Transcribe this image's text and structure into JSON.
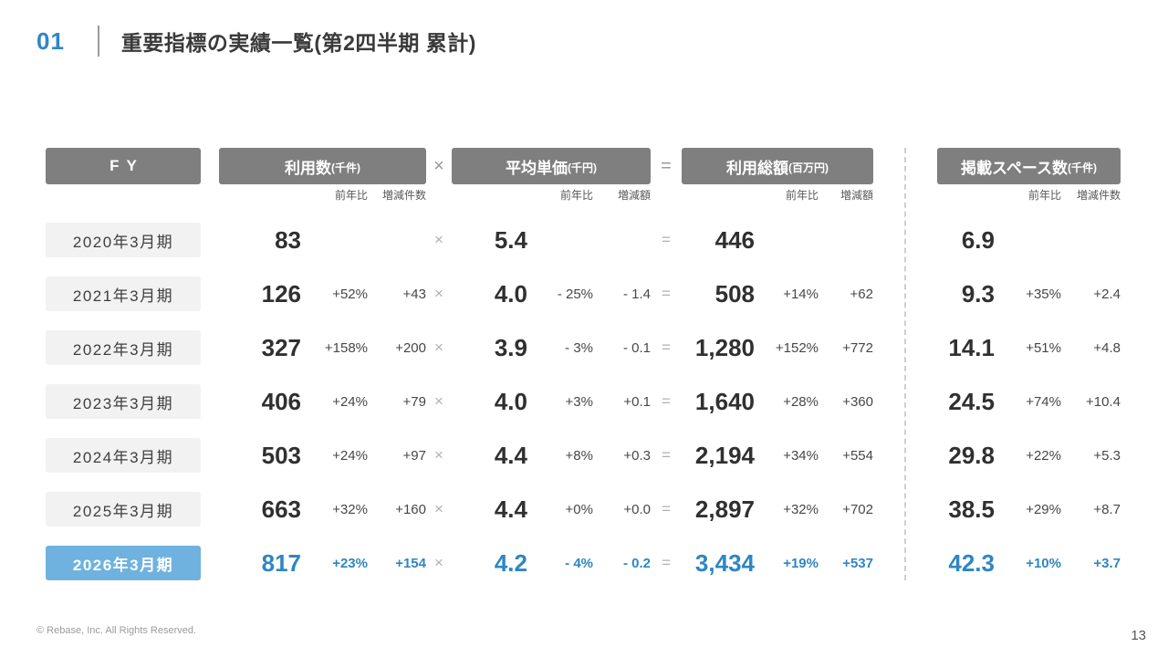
{
  "page": {
    "number_label": "01",
    "title": "重要指標の実績一覧(第2四半期 累計)",
    "footer_copyright": "© Rebase, Inc. All Rights Reserved.",
    "page_number": "13"
  },
  "colors": {
    "accent_blue": "#2E86C4",
    "highlight_row_bg": "#6FB2DF",
    "header_box_bg": "#7F7F7F"
  },
  "table": {
    "fy_header": "FY",
    "operators": {
      "multiply": "×",
      "equals": "="
    },
    "groups": [
      {
        "title": "利用数",
        "unit": "(千件)",
        "sub": [
          "前年比",
          "増減件数"
        ]
      },
      {
        "title": "平均単価",
        "unit": "(千円)",
        "sub": [
          "前年比",
          "増減額"
        ]
      },
      {
        "title": "利用総額",
        "unit": "(百万円)",
        "sub": [
          "前年比",
          "増減額"
        ]
      },
      {
        "title": "掲載スペース数",
        "unit": "(千件)",
        "sub": [
          "前年比",
          "増減件数"
        ]
      }
    ],
    "rows": [
      {
        "fy": "2020年3月期",
        "highlight": false,
        "usage": {
          "value": "83",
          "yoy": "",
          "diff": ""
        },
        "price": {
          "value": "5.4",
          "yoy": "",
          "diff": ""
        },
        "total": {
          "value": "446",
          "yoy": "",
          "diff": ""
        },
        "space": {
          "value": "6.9",
          "yoy": "",
          "diff": ""
        }
      },
      {
        "fy": "2021年3月期",
        "highlight": false,
        "usage": {
          "value": "126",
          "yoy": "+52%",
          "diff": "+43"
        },
        "price": {
          "value": "4.0",
          "yoy": "- 25%",
          "diff": "- 1.4"
        },
        "total": {
          "value": "508",
          "yoy": "+14%",
          "diff": "+62"
        },
        "space": {
          "value": "9.3",
          "yoy": "+35%",
          "diff": "+2.4"
        }
      },
      {
        "fy": "2022年3月期",
        "highlight": false,
        "usage": {
          "value": "327",
          "yoy": "+158%",
          "diff": "+200"
        },
        "price": {
          "value": "3.9",
          "yoy": "- 3%",
          "diff": "- 0.1"
        },
        "total": {
          "value": "1,280",
          "yoy": "+152%",
          "diff": "+772"
        },
        "space": {
          "value": "14.1",
          "yoy": "+51%",
          "diff": "+4.8"
        }
      },
      {
        "fy": "2023年3月期",
        "highlight": false,
        "usage": {
          "value": "406",
          "yoy": "+24%",
          "diff": "+79"
        },
        "price": {
          "value": "4.0",
          "yoy": "+3%",
          "diff": "+0.1"
        },
        "total": {
          "value": "1,640",
          "yoy": "+28%",
          "diff": "+360"
        },
        "space": {
          "value": "24.5",
          "yoy": "+74%",
          "diff": "+10.4"
        }
      },
      {
        "fy": "2024年3月期",
        "highlight": false,
        "usage": {
          "value": "503",
          "yoy": "+24%",
          "diff": "+97"
        },
        "price": {
          "value": "4.4",
          "yoy": "+8%",
          "diff": "+0.3"
        },
        "total": {
          "value": "2,194",
          "yoy": "+34%",
          "diff": "+554"
        },
        "space": {
          "value": "29.8",
          "yoy": "+22%",
          "diff": "+5.3"
        }
      },
      {
        "fy": "2025年3月期",
        "highlight": false,
        "usage": {
          "value": "663",
          "yoy": "+32%",
          "diff": "+160"
        },
        "price": {
          "value": "4.4",
          "yoy": "+0%",
          "diff": "+0.0"
        },
        "total": {
          "value": "2,897",
          "yoy": "+32%",
          "diff": "+702"
        },
        "space": {
          "value": "38.5",
          "yoy": "+29%",
          "diff": "+8.7"
        }
      },
      {
        "fy": "2026年3月期",
        "highlight": true,
        "usage": {
          "value": "817",
          "yoy": "+23%",
          "diff": "+154"
        },
        "price": {
          "value": "4.2",
          "yoy": "- 4%",
          "diff": "- 0.2"
        },
        "total": {
          "value": "3,434",
          "yoy": "+19%",
          "diff": "+537"
        },
        "space": {
          "value": "42.3",
          "yoy": "+10%",
          "diff": "+3.7"
        }
      }
    ]
  }
}
